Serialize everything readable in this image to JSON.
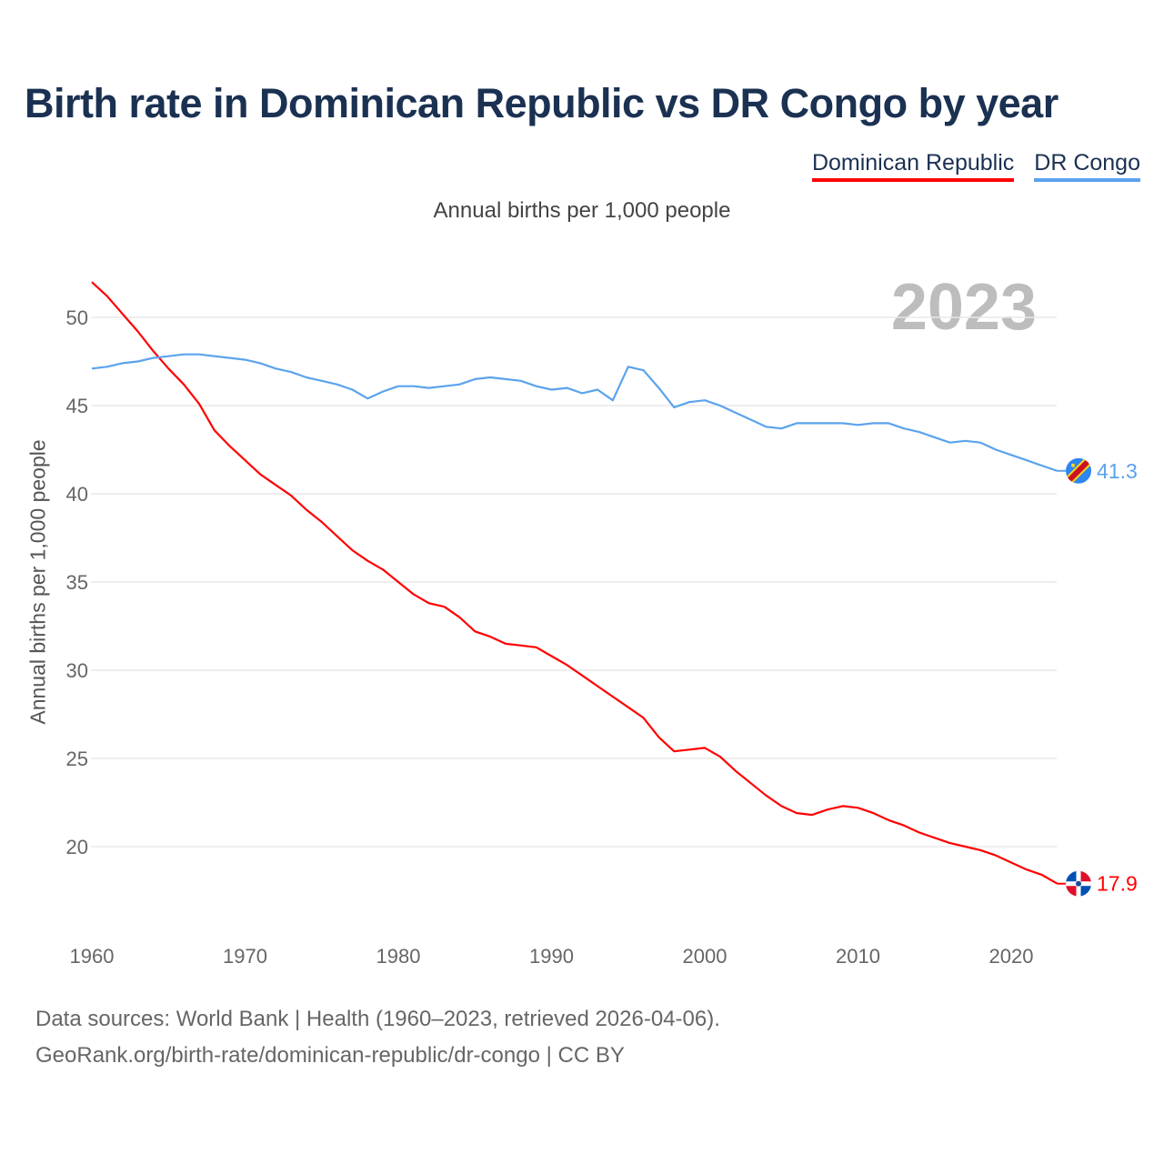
{
  "title": "Birth rate in Dominican Republic vs DR Congo by year",
  "subtitle": "Annual births per 1,000 people",
  "footer": {
    "line1": "Data sources: World Bank | Health (1960–2023, retrieved 2026-04-06).",
    "line2": "GeoRank.org/birth-rate/dominican-republic/dr-congo | CC BY"
  },
  "chart_data": {
    "type": "line",
    "title": "Birth rate in Dominican Republic vs DR Congo by year",
    "ylabel": "Annual births per 1,000 people",
    "xlabel": "",
    "year_label": "2023",
    "xlim": [
      1960,
      2023
    ],
    "ylim": [
      17,
      52
    ],
    "xticks": [
      1960,
      1970,
      1980,
      1990,
      2000,
      2010,
      2020
    ],
    "yticks": [
      20,
      25,
      30,
      35,
      40,
      45,
      50
    ],
    "grid": true,
    "legend": "top-right",
    "x_start": 1960,
    "series": [
      {
        "name": "Dominican Republic",
        "color": "#ff0000",
        "end_label": "17.9",
        "flag": "dominican-republic-flag",
        "values": [
          52.0,
          51.2,
          50.2,
          49.2,
          48.1,
          47.1,
          46.2,
          45.1,
          43.6,
          42.7,
          41.9,
          41.1,
          40.5,
          39.9,
          39.1,
          38.4,
          37.6,
          36.8,
          36.2,
          35.7,
          35.0,
          34.3,
          33.8,
          33.6,
          33.0,
          32.2,
          31.9,
          31.5,
          31.4,
          31.3,
          30.8,
          30.3,
          29.7,
          29.1,
          28.5,
          27.9,
          27.3,
          26.2,
          25.4,
          25.5,
          25.6,
          25.1,
          24.3,
          23.6,
          22.9,
          22.3,
          21.9,
          21.8,
          22.1,
          22.3,
          22.2,
          21.9,
          21.5,
          21.2,
          20.8,
          20.5,
          20.2,
          20.0,
          19.8,
          19.5,
          19.1,
          18.7,
          18.4,
          17.9
        ]
      },
      {
        "name": "DR Congo",
        "color": "#5ba3ec",
        "end_label": "41.3",
        "flag": "dr-congo-flag",
        "values": [
          47.1,
          47.2,
          47.4,
          47.5,
          47.7,
          47.8,
          47.9,
          47.9,
          47.8,
          47.7,
          47.6,
          47.4,
          47.1,
          46.9,
          46.6,
          46.4,
          46.2,
          45.9,
          45.4,
          45.8,
          46.1,
          46.1,
          46.0,
          46.1,
          46.2,
          46.5,
          46.6,
          46.5,
          46.4,
          46.1,
          45.9,
          46.0,
          45.7,
          45.9,
          45.3,
          47.2,
          47.0,
          46.0,
          44.9,
          45.2,
          45.3,
          45.0,
          44.6,
          44.2,
          43.8,
          43.7,
          44.0,
          44.0,
          44.0,
          44.0,
          43.9,
          44.0,
          44.0,
          43.7,
          43.5,
          43.2,
          42.9,
          43.0,
          42.9,
          42.5,
          42.2,
          41.9,
          41.6,
          41.3
        ]
      }
    ]
  }
}
